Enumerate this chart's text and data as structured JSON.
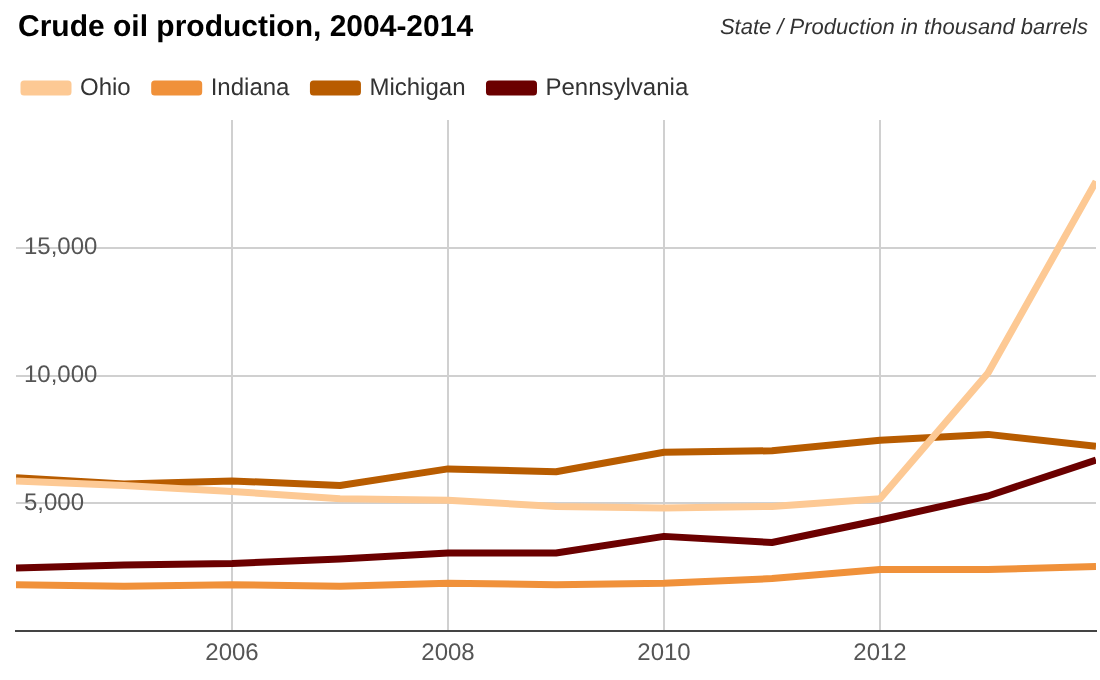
{
  "chart_data": {
    "type": "line",
    "title": "Crude oil production, 2004-2014",
    "subtitle": "State / Production in thousand barrels",
    "x": [
      2004,
      2005,
      2006,
      2007,
      2008,
      2009,
      2010,
      2011,
      2012,
      2013,
      2014
    ],
    "series": [
      {
        "name": "Ohio",
        "color": "#fdc994",
        "values": [
          5880,
          5700,
          5470,
          5180,
          5120,
          4880,
          4820,
          4880,
          5180,
          10100,
          17600
        ]
      },
      {
        "name": "Indiana",
        "color": "#f0913a",
        "values": [
          1820,
          1760,
          1820,
          1760,
          1880,
          1820,
          1880,
          2060,
          2410,
          2410,
          2530
        ]
      },
      {
        "name": "Michigan",
        "color": "#b85c00",
        "values": [
          6000,
          5760,
          5880,
          5700,
          6350,
          6240,
          7000,
          7060,
          7470,
          7700,
          7240
        ]
      },
      {
        "name": "Pennsylvania",
        "color": "#6b0000",
        "values": [
          2470,
          2590,
          2650,
          2820,
          3060,
          3060,
          3710,
          3470,
          4350,
          5290,
          6700
        ]
      }
    ],
    "xlim": [
      2004,
      2014
    ],
    "xticks": [
      2006,
      2008,
      2010,
      2012
    ],
    "ylim": [
      0,
      20000
    ],
    "yticks": [
      {
        "value": 5000,
        "label": "5,000"
      },
      {
        "value": 10000,
        "label": "10,000"
      },
      {
        "value": 15000,
        "label": "15,000"
      }
    ],
    "grid": true,
    "legend": "top left",
    "marker": "none"
  }
}
